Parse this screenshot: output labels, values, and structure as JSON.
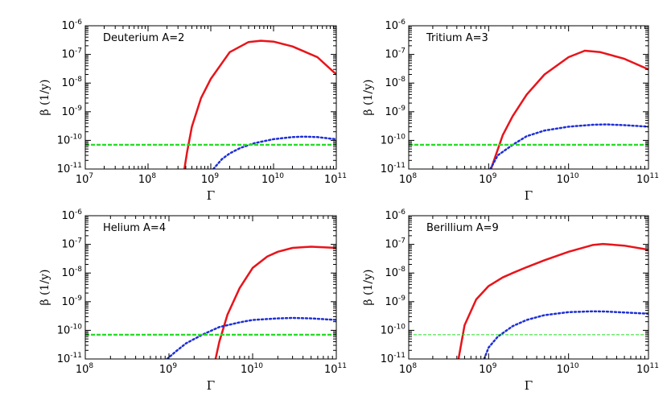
{
  "chart_data": [
    {
      "type": "line",
      "annotation": "Deuterium A=2",
      "xlabel": "Γ",
      "ylabel": "β (1/y)",
      "xscale": "log",
      "yscale": "log",
      "xlim": [
        10000000.0,
        100000000000.0
      ],
      "ylim": [
        1e-11,
        1e-06
      ],
      "xticks": [
        {
          "base": "10",
          "exp": "7",
          "value": 10000000.0
        },
        {
          "base": "10",
          "exp": "8",
          "value": 100000000.0
        },
        {
          "base": "10",
          "exp": "9",
          "value": 1000000000.0
        },
        {
          "base": "10",
          "exp": "10",
          "value": 10000000000.0
        },
        {
          "base": "10",
          "exp": "11",
          "value": 100000000000.0
        }
      ],
      "yticks": [
        {
          "base": "10",
          "exp": "-6",
          "value": 1e-06
        },
        {
          "base": "10",
          "exp": "-7",
          "value": 1e-07
        },
        {
          "base": "10",
          "exp": "-8",
          "value": 1e-08
        },
        {
          "base": "10",
          "exp": "-9",
          "value": 1e-09
        },
        {
          "base": "10",
          "exp": "-10",
          "value": 1e-10
        },
        {
          "base": "10",
          "exp": "-11",
          "value": 1e-11
        }
      ],
      "grid": false,
      "series": [
        {
          "style": "solid",
          "color": "#e8141a",
          "x": [
            380000000.0,
            420000000.0,
            500000000.0,
            700000000.0,
            1000000000.0,
            2000000000.0,
            4000000000.0,
            6300000000.0,
            10000000000.0,
            20000000000.0,
            50000000000.0,
            100000000000.0
          ],
          "y": [
            1e-11,
            4e-11,
            3e-10,
            3e-09,
            1.4e-08,
            1.2e-07,
            2.7e-07,
            3e-07,
            2.8e-07,
            1.9e-07,
            8e-08,
            2e-08
          ]
        },
        {
          "style": "dotted",
          "color": "#1f2fd6",
          "x": [
            1100000000.0,
            1500000000.0,
            2000000000.0,
            3000000000.0,
            5000000000.0,
            10000000000.0,
            20000000000.0,
            30000000000.0,
            50000000000.0,
            80000000000.0,
            100000000000.0
          ],
          "y": [
            1e-11,
            2.2e-11,
            3.5e-11,
            5.5e-11,
            8e-11,
            1.1e-10,
            1.3e-10,
            1.35e-10,
            1.3e-10,
            1.15e-10,
            1.1e-10
          ]
        },
        {
          "style": "dashed",
          "color": "#22dd22",
          "x": [
            10000000.0,
            100000000000.0
          ],
          "y": [
            7e-11,
            7e-11
          ]
        }
      ]
    },
    {
      "type": "line",
      "annotation": "Tritium A=3",
      "xlabel": "Γ",
      "ylabel": "β (1/y)",
      "xscale": "log",
      "yscale": "log",
      "xlim": [
        100000000.0,
        100000000000.0
      ],
      "ylim": [
        1e-11,
        1e-06
      ],
      "xticks": [
        {
          "base": "10",
          "exp": "8",
          "value": 100000000.0
        },
        {
          "base": "10",
          "exp": "9",
          "value": 1000000000.0
        },
        {
          "base": "10",
          "exp": "10",
          "value": 10000000000.0
        },
        {
          "base": "10",
          "exp": "11",
          "value": 100000000000.0
        }
      ],
      "yticks": [
        {
          "base": "10",
          "exp": "-6",
          "value": 1e-06
        },
        {
          "base": "10",
          "exp": "-7",
          "value": 1e-07
        },
        {
          "base": "10",
          "exp": "-8",
          "value": 1e-08
        },
        {
          "base": "10",
          "exp": "-9",
          "value": 1e-09
        },
        {
          "base": "10",
          "exp": "-10",
          "value": 1e-10
        },
        {
          "base": "10",
          "exp": "-11",
          "value": 1e-11
        }
      ],
      "grid": false,
      "series": [
        {
          "style": "solid",
          "color": "#e8141a",
          "x": [
            1070000000.0,
            1200000000.0,
            1500000000.0,
            2000000000.0,
            3000000000.0,
            5000000000.0,
            10000000000.0,
            16000000000.0,
            25000000000.0,
            50000000000.0,
            100000000000.0
          ],
          "y": [
            1e-11,
            2.5e-11,
            1.5e-10,
            7e-10,
            4e-09,
            2e-08,
            8e-08,
            1.35e-07,
            1.2e-07,
            7e-08,
            3e-08
          ]
        },
        {
          "style": "dotted",
          "color": "#1f2fd6",
          "x": [
            1050000000.0,
            1300000000.0,
            2000000000.0,
            3000000000.0,
            5000000000.0,
            10000000000.0,
            20000000000.0,
            30000000000.0,
            50000000000.0,
            100000000000.0
          ],
          "y": [
            1e-11,
            3e-11,
            7e-11,
            1.4e-10,
            2.2e-10,
            3e-10,
            3.5e-10,
            3.6e-10,
            3.4e-10,
            3e-10
          ]
        },
        {
          "style": "dashed",
          "color": "#22dd22",
          "x": [
            100000000.0,
            100000000000.0
          ],
          "y": [
            7e-11,
            7e-11
          ]
        }
      ]
    },
    {
      "type": "line",
      "annotation": "Helium A=4",
      "xlabel": "Γ",
      "ylabel": "β (1/y)",
      "xscale": "log",
      "yscale": "log",
      "xlim": [
        100000000.0,
        100000000000.0
      ],
      "ylim": [
        1e-11,
        1e-06
      ],
      "xticks": [
        {
          "base": "10",
          "exp": "8",
          "value": 100000000.0
        },
        {
          "base": "10",
          "exp": "9",
          "value": 1000000000.0
        },
        {
          "base": "10",
          "exp": "10",
          "value": 10000000000.0
        },
        {
          "base": "10",
          "exp": "11",
          "value": 100000000000.0
        }
      ],
      "yticks": [
        {
          "base": "10",
          "exp": "-6",
          "value": 1e-06
        },
        {
          "base": "10",
          "exp": "-7",
          "value": 1e-07
        },
        {
          "base": "10",
          "exp": "-8",
          "value": 1e-08
        },
        {
          "base": "10",
          "exp": "-9",
          "value": 1e-09
        },
        {
          "base": "10",
          "exp": "-10",
          "value": 1e-10
        },
        {
          "base": "10",
          "exp": "-11",
          "value": 1e-11
        }
      ],
      "grid": false,
      "series": [
        {
          "style": "solid",
          "color": "#e8141a",
          "x": [
            3600000000.0,
            4000000000.0,
            5000000000.0,
            7000000000.0,
            10000000000.0,
            15000000000.0,
            20000000000.0,
            30000000000.0,
            50000000000.0,
            100000000000.0
          ],
          "y": [
            1e-11,
            4e-11,
            3.5e-10,
            3e-09,
            1.5e-08,
            3.8e-08,
            5.5e-08,
            7.5e-08,
            8.3e-08,
            7.5e-08
          ]
        },
        {
          "style": "dotted",
          "color": "#1f2fd6",
          "x": [
            950000000.0,
            1200000000.0,
            1600000000.0,
            2500000000.0,
            4000000000.0,
            7000000000.0,
            10000000000.0,
            20000000000.0,
            30000000000.0,
            50000000000.0,
            100000000000.0
          ],
          "y": [
            1e-11,
            1.8e-11,
            3.5e-11,
            7e-11,
            1.3e-10,
            1.9e-10,
            2.3e-10,
            2.6e-10,
            2.7e-10,
            2.6e-10,
            2.3e-10
          ]
        },
        {
          "style": "dashed",
          "color": "#22dd22",
          "x": [
            100000000.0,
            100000000000.0
          ],
          "y": [
            7e-11,
            7e-11
          ]
        }
      ]
    },
    {
      "type": "line",
      "annotation": "Berillium A=9",
      "xlabel": "Γ",
      "ylabel": "β (1/y)",
      "xscale": "log",
      "yscale": "log",
      "xlim": [
        100000000.0,
        100000000000.0
      ],
      "ylim": [
        1e-11,
        1e-06
      ],
      "xticks": [
        {
          "base": "10",
          "exp": "8",
          "value": 100000000.0
        },
        {
          "base": "10",
          "exp": "9",
          "value": 1000000000.0
        },
        {
          "base": "10",
          "exp": "10",
          "value": 10000000000.0
        },
        {
          "base": "10",
          "exp": "11",
          "value": 100000000000.0
        }
      ],
      "yticks": [
        {
          "base": "10",
          "exp": "-6",
          "value": 1e-06
        },
        {
          "base": "10",
          "exp": "-7",
          "value": 1e-07
        },
        {
          "base": "10",
          "exp": "-8",
          "value": 1e-08
        },
        {
          "base": "10",
          "exp": "-9",
          "value": 1e-09
        },
        {
          "base": "10",
          "exp": "-10",
          "value": 1e-10
        },
        {
          "base": "10",
          "exp": "-11",
          "value": 1e-11
        }
      ],
      "grid": false,
      "series": [
        {
          "style": "solid",
          "color": "#e8141a",
          "x": [
            420000000.0,
            500000000.0,
            700000000.0,
            1000000000.0,
            1500000000.0,
            2000000000.0,
            3000000000.0,
            5000000000.0,
            10000000000.0,
            20000000000.0,
            27000000000.0,
            50000000000.0,
            100000000000.0
          ],
          "y": [
            1e-11,
            1.5e-10,
            1.2e-09,
            3.5e-09,
            7e-09,
            1e-08,
            1.6e-08,
            2.8e-08,
            5.5e-08,
            9.5e-08,
            1.03e-07,
            9e-08,
            6.5e-08
          ]
        },
        {
          "style": "dotted",
          "color": "#1f2fd6",
          "x": [
            880000000.0,
            1000000000.0,
            1300000000.0,
            2000000000.0,
            3000000000.0,
            5000000000.0,
            10000000000.0,
            20000000000.0,
            30000000000.0,
            50000000000.0,
            100000000000.0
          ],
          "y": [
            1e-11,
            2.5e-11,
            6e-11,
            1.4e-10,
            2.3e-10,
            3.4e-10,
            4.3e-10,
            4.6e-10,
            4.5e-10,
            4.2e-10,
            3.8e-10
          ]
        },
        {
          "style": "dashed-thin",
          "color": "#22dd22",
          "x": [
            100000000.0,
            100000000000.0
          ],
          "y": [
            7e-11,
            7e-11
          ]
        }
      ]
    }
  ]
}
